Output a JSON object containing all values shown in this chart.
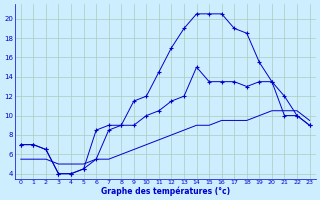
{
  "xlabel": "Graphe des températures (°c)",
  "x": [
    0,
    1,
    2,
    3,
    4,
    5,
    6,
    7,
    8,
    9,
    10,
    11,
    12,
    13,
    14,
    15,
    16,
    17,
    18,
    19,
    20,
    21,
    22,
    23
  ],
  "curve_main": [
    7.0,
    7.0,
    6.5,
    4.0,
    4.0,
    4.5,
    8.5,
    9.0,
    9.0,
    11.5,
    12.0,
    14.5,
    17.0,
    19.0,
    20.5,
    20.5,
    20.5,
    19.0,
    18.5,
    15.5,
    13.5,
    10.0,
    10.0,
    9.0
  ],
  "curve_mid": [
    7.0,
    7.0,
    6.5,
    4.0,
    4.0,
    4.5,
    5.5,
    8.5,
    9.0,
    9.0,
    10.0,
    10.5,
    11.5,
    12.0,
    15.0,
    13.5,
    13.5,
    13.5,
    13.0,
    13.5,
    13.5,
    12.0,
    10.0,
    9.0
  ],
  "curve_flat": [
    5.5,
    5.5,
    5.5,
    5.0,
    5.0,
    5.0,
    5.5,
    5.5,
    6.0,
    6.5,
    7.0,
    7.5,
    8.0,
    8.5,
    9.0,
    9.0,
    9.5,
    9.5,
    9.5,
    10.0,
    10.5,
    10.5,
    10.5,
    9.5
  ],
  "line_color": "#0000cc",
  "bg_color": "#cceeff",
  "grid_color": "#aaccbb",
  "ylim": [
    3.5,
    21.5
  ],
  "xlim": [
    -0.5,
    23.5
  ],
  "yticks": [
    4,
    6,
    8,
    10,
    12,
    14,
    16,
    18,
    20
  ],
  "xticks": [
    0,
    1,
    2,
    3,
    4,
    5,
    6,
    7,
    8,
    9,
    10,
    11,
    12,
    13,
    14,
    15,
    16,
    17,
    18,
    19,
    20,
    21,
    22,
    23
  ]
}
